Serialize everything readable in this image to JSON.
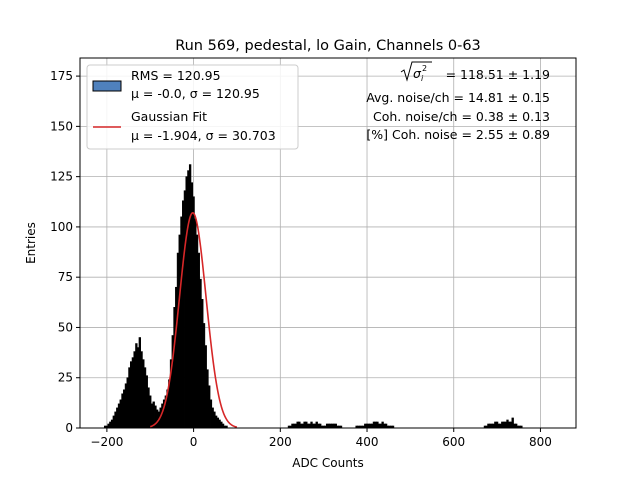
{
  "chart_data": {
    "type": "bar",
    "title": "Run 569, pedestal, lo Gain, Channels 0-63",
    "xlabel": "ADC Counts",
    "ylabel": "Entries",
    "xlim": [
      -262,
      882
    ],
    "ylim": [
      0,
      184
    ],
    "xticks": [
      "-200",
      "0",
      "200",
      "400",
      "600",
      "800"
    ],
    "xtick_values": [
      -200,
      0,
      200,
      400,
      600,
      800
    ],
    "yticks": [
      "0",
      "25",
      "50",
      "75",
      "100",
      "125",
      "150",
      "175"
    ],
    "ytick_values": [
      0,
      25,
      50,
      75,
      100,
      125,
      150,
      175
    ],
    "grid": true,
    "legend_position": "upper-left",
    "histogram": {
      "name": "RMS = 120.95",
      "stats_label": "μ = -0.0, σ = 120.95",
      "color": "#4f81bd",
      "bin_width": 4,
      "bin_centers": [
        -208,
        -204,
        -200,
        -196,
        -192,
        -188,
        -184,
        -180,
        -176,
        -172,
        -168,
        -164,
        -160,
        -156,
        -152,
        -148,
        -144,
        -140,
        -136,
        -132,
        -128,
        -124,
        -120,
        -116,
        -112,
        -108,
        -104,
        -100,
        -96,
        -92,
        -88,
        -84,
        -80,
        -76,
        -72,
        -68,
        -64,
        -60,
        -56,
        -52,
        -48,
        -44,
        -40,
        -36,
        -32,
        -28,
        -24,
        -20,
        -16,
        -12,
        -8,
        -4,
        0,
        4,
        8,
        12,
        16,
        20,
        24,
        28,
        32,
        36,
        40,
        44,
        48,
        52,
        56,
        60,
        64,
        68,
        72,
        76,
        80,
        84,
        88,
        92,
        96,
        100,
        104,
        108,
        112,
        116,
        120,
        124,
        128,
        132,
        136,
        140,
        144,
        148,
        152,
        156,
        160,
        164,
        168,
        172,
        176,
        180,
        184,
        188,
        192,
        196,
        200,
        204,
        208,
        212,
        216,
        220,
        224,
        228,
        232,
        236,
        240,
        244,
        248,
        252,
        256,
        260,
        264,
        268,
        272,
        276,
        280,
        284,
        288,
        292,
        296,
        300,
        304,
        308,
        312,
        316,
        320,
        324,
        328,
        332,
        336,
        340,
        344,
        348,
        352,
        356,
        360,
        364,
        368,
        372,
        376,
        380,
        384,
        388,
        392,
        396,
        400,
        404,
        408,
        412,
        416,
        420,
        424,
        428,
        432,
        436,
        440,
        444,
        448,
        452,
        456,
        460,
        464,
        468,
        472,
        476,
        480,
        484,
        488,
        492,
        496,
        500,
        504,
        508,
        512,
        516,
        520,
        524,
        528,
        532,
        536,
        540,
        544,
        548,
        552,
        556,
        560,
        564,
        568,
        572,
        576,
        580,
        584,
        588,
        592,
        596,
        600,
        604,
        608,
        612,
        616,
        620,
        624,
        628,
        632,
        636,
        640,
        644,
        648,
        652,
        656,
        660,
        664,
        668,
        672,
        676,
        680,
        684,
        688,
        692,
        696,
        700,
        704,
        708,
        712,
        716,
        720,
        724,
        728,
        732,
        736,
        740,
        744,
        748,
        752,
        756,
        760,
        764,
        768,
        772,
        776,
        780,
        784,
        788,
        792,
        796,
        800,
        804,
        808,
        812,
        816,
        820,
        824,
        828,
        832
      ],
      "counts": [
        0,
        1,
        1,
        2,
        3,
        4,
        6,
        8,
        10,
        12,
        14,
        17,
        19,
        22,
        25,
        30,
        33,
        35,
        38,
        42,
        40,
        45,
        38,
        34,
        30,
        26,
        20,
        16,
        12,
        13,
        11,
        9,
        8,
        10,
        12,
        14,
        16,
        19,
        24,
        34,
        46,
        60,
        70,
        87,
        96,
        105,
        113,
        118,
        125,
        128,
        131,
        122,
        115,
        104,
        96,
        87,
        74,
        64,
        52,
        41,
        29,
        21,
        14,
        10,
        8,
        6,
        5,
        4,
        3,
        2,
        1,
        1,
        0,
        0,
        0,
        0,
        0,
        0,
        0,
        0,
        0,
        0,
        0,
        0,
        0,
        0,
        0,
        0,
        0,
        0,
        0,
        0,
        0,
        0,
        0,
        0,
        0,
        0,
        0,
        0,
        0,
        0,
        0,
        0,
        0,
        0,
        0,
        1,
        1,
        2,
        2,
        2,
        3,
        3,
        2,
        2,
        3,
        3,
        2,
        2,
        3,
        2,
        2,
        3,
        2,
        2,
        1,
        1,
        1,
        2,
        2,
        2,
        2,
        2,
        2,
        1,
        1,
        1,
        0,
        0,
        0,
        0,
        0,
        0,
        0,
        0,
        1,
        1,
        1,
        1,
        1,
        2,
        2,
        2,
        2,
        2,
        3,
        3,
        3,
        2,
        2,
        3,
        2,
        2,
        1,
        1,
        1,
        1,
        0,
        0,
        0,
        0,
        0,
        0,
        0,
        0,
        0,
        0,
        0,
        0,
        0,
        0,
        0,
        0,
        0,
        0,
        0,
        0,
        0,
        0,
        0,
        0,
        0,
        0,
        0,
        0,
        0,
        0,
        0,
        0,
        0,
        0,
        0,
        0,
        0,
        0,
        0,
        0,
        0,
        0,
        0,
        0,
        0,
        0,
        0,
        0,
        0,
        0,
        0,
        0,
        1,
        1,
        2,
        2,
        2,
        2,
        3,
        3,
        2,
        2,
        3,
        3,
        3,
        4,
        3,
        3,
        5,
        2,
        2,
        1,
        1,
        1,
        0
      ]
    },
    "fit": {
      "name": "Gaussian Fit",
      "stats_label": "μ = -1.904, σ = 30.703",
      "color": "#d62728",
      "mu": -1.904,
      "sigma": 30.703,
      "amplitude": 107
    },
    "annotations": [
      {
        "prefix_symbol": "sqrt-sigma-i-squared",
        "text": "= 118.51 ± 1.19"
      },
      {
        "text": "Avg. noise/ch = 14.81 ± 0.15"
      },
      {
        "text": "Coh. noise/ch = 0.38 ± 0.13"
      },
      {
        "text": "[%] Coh. noise = 2.55 ± 0.89"
      }
    ]
  }
}
